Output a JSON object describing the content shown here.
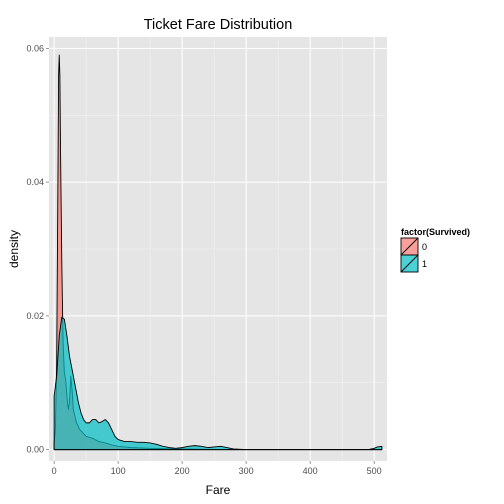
{
  "chart_data": {
    "type": "area",
    "subtype": "density",
    "title": "Ticket Fare Distribution",
    "xlabel": "Fare",
    "ylabel": "density",
    "xlim": [
      -8,
      520
    ],
    "ylim": [
      -0.0017,
      0.0617
    ],
    "x_ticks": [
      0,
      100,
      200,
      300,
      400,
      500
    ],
    "x_tick_labels": [
      "0",
      "100",
      "200",
      "300",
      "400",
      "500"
    ],
    "y_ticks": [
      0.0,
      0.02,
      0.04,
      0.06
    ],
    "y_tick_labels": [
      "0.00",
      "0.02",
      "0.04",
      "0.06"
    ],
    "grid": true,
    "legend": {
      "title": "factor(Survived)",
      "position": "right"
    },
    "series": [
      {
        "name": "0",
        "color": "#F8766D",
        "opacity": 0.7,
        "x": [
          0,
          2,
          4,
          6,
          7,
          8,
          9,
          10,
          12,
          14,
          16,
          18,
          20,
          22,
          24,
          26,
          28,
          30,
          35,
          40,
          50,
          60,
          70,
          80,
          90,
          100,
          120,
          150,
          200,
          263,
          300,
          400,
          512
        ],
        "y": [
          0.001,
          0.003,
          0.013,
          0.041,
          0.056,
          0.059,
          0.056,
          0.045,
          0.028,
          0.016,
          0.0115,
          0.0105,
          0.008,
          0.006,
          0.007,
          0.011,
          0.009,
          0.006,
          0.004,
          0.003,
          0.002,
          0.0017,
          0.0012,
          0.001,
          0.0007,
          0.0005,
          0.0003,
          0.0002,
          0.0001,
          0.0,
          0.0,
          0.0,
          0.0
        ]
      },
      {
        "name": "1",
        "color": "#00BFC4",
        "opacity": 0.7,
        "x": [
          0,
          4,
          8,
          12,
          16,
          20,
          24,
          28,
          30,
          34,
          38,
          42,
          46,
          50,
          55,
          60,
          65,
          70,
          75,
          80,
          85,
          90,
          95,
          100,
          110,
          120,
          130,
          140,
          150,
          160,
          170,
          180,
          190,
          200,
          210,
          220,
          230,
          240,
          250,
          260,
          270,
          280,
          300,
          400,
          490,
          500,
          505,
          512
        ],
        "y": [
          0.008,
          0.011,
          0.017,
          0.0198,
          0.0195,
          0.017,
          0.014,
          0.012,
          0.011,
          0.009,
          0.007,
          0.0055,
          0.0045,
          0.004,
          0.004,
          0.0045,
          0.0045,
          0.004,
          0.0042,
          0.0045,
          0.004,
          0.003,
          0.002,
          0.0015,
          0.0012,
          0.0012,
          0.0011,
          0.0011,
          0.001,
          0.0008,
          0.0005,
          0.0003,
          0.0002,
          0.0003,
          0.0005,
          0.0006,
          0.0005,
          0.0003,
          0.0004,
          0.0005,
          0.0003,
          0.0001,
          0.0,
          0.0,
          0.0,
          0.0002,
          0.0004,
          0.0005
        ]
      }
    ]
  }
}
